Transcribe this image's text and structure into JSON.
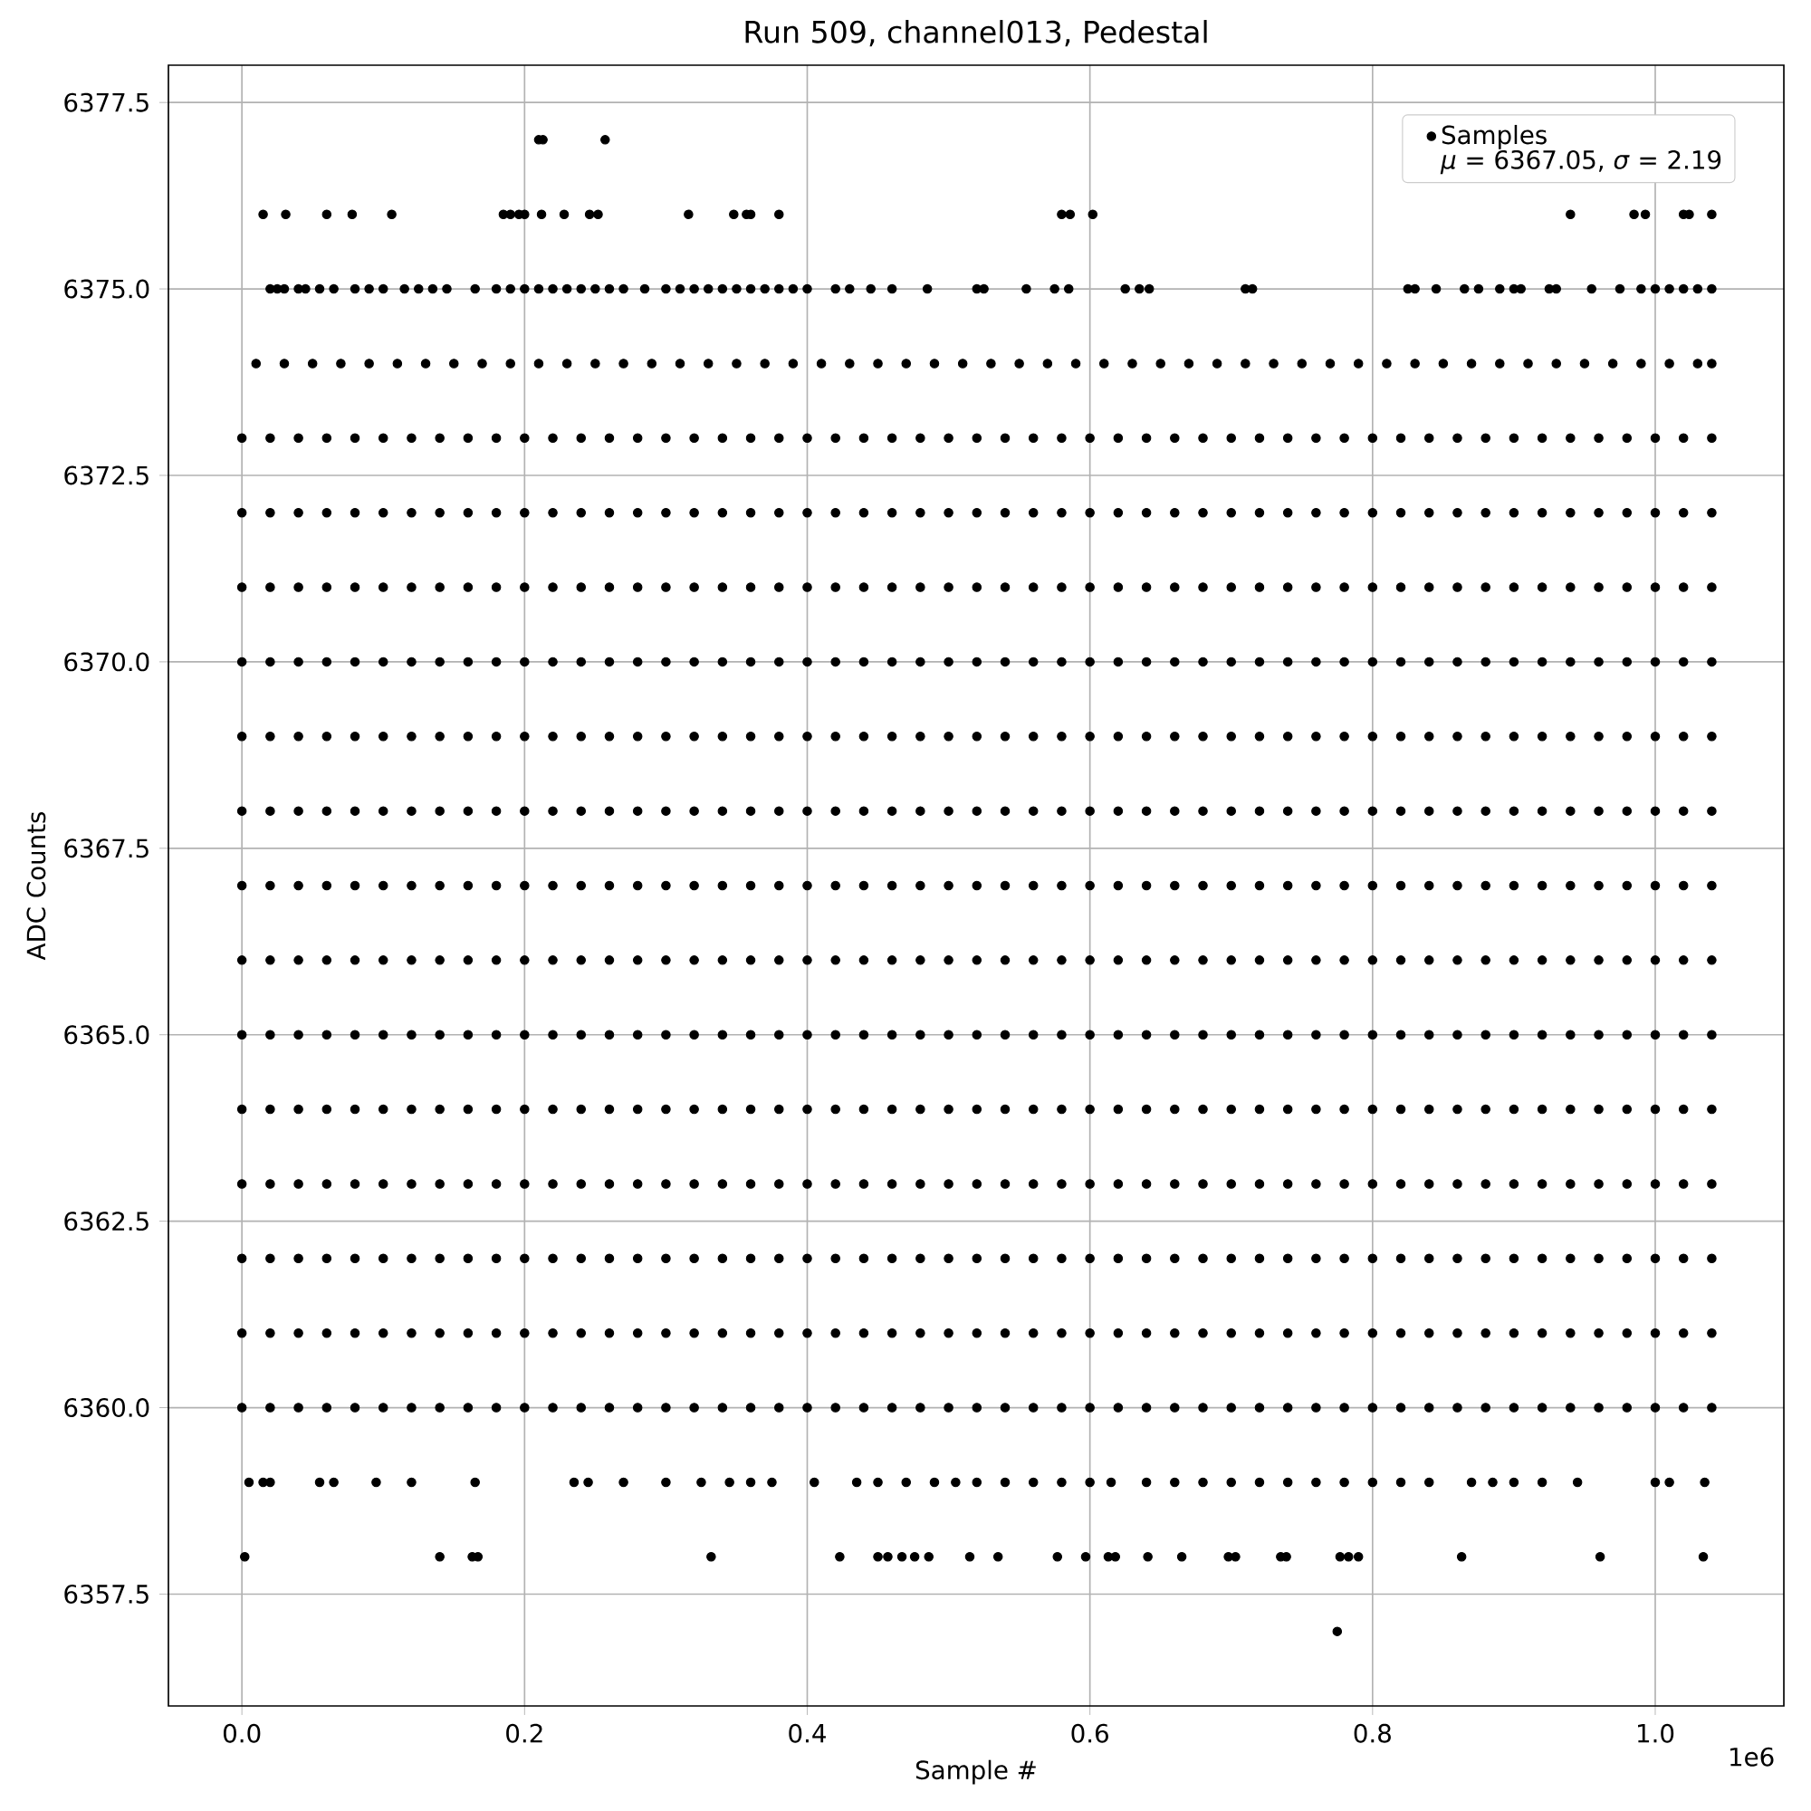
{
  "chart_data": {
    "type": "scatter",
    "title": "Run 509, channel013, Pedestal",
    "xlabel": "Sample #",
    "ylabel": "ADC Counts",
    "annotations": [
      "*μ* = 6367.05, *σ* = 2.19",
      "1e6"
    ],
    "xlim": [
      -0.052,
      1.091
    ],
    "ylim": [
      6356,
      6378
    ],
    "xticks": [
      {
        "value": 0,
        "label": "0.0"
      },
      0.2,
      0.4,
      0.6,
      0.8,
      {
        "value": 1,
        "label": "1.0"
      }
    ],
    "yticks": [
      6357.5,
      {
        "value": 6360,
        "label": "6360.0"
      },
      6362.5,
      {
        "value": 6365,
        "label": "6365.0"
      },
      6367.5,
      {
        "value": 6370,
        "label": "6370.0"
      },
      6372.5,
      {
        "value": 6375,
        "label": "6375.0"
      },
      6377.5
    ],
    "grid": true,
    "legend": "top right",
    "series": [
      {
        "name": "Samples",
        "color": "#000000",
        "x": [
          0.21,
          0.213,
          0.257
        ],
        "values": [
          6377,
          6377,
          6377
        ]
      },
      {
        "color": "#000000",
        "x": [
          0.015,
          0.031,
          0.06,
          0.078,
          0.106,
          0.185,
          0.19,
          0.196,
          0.2,
          0.212,
          0.228,
          0.246,
          0.252,
          0.316,
          0.348,
          0.357,
          0.36,
          0.38,
          0.58,
          0.586,
          0.602,
          0.94,
          0.985,
          0.993,
          1.02,
          1.024,
          1.04
        ],
        "values": [
          6376,
          6376,
          6376,
          6376,
          6376,
          6376,
          6376,
          6376,
          6376,
          6376,
          6376,
          6376,
          6376,
          6376,
          6376,
          6376,
          6376,
          6376,
          6376,
          6376,
          6376,
          6376,
          6376,
          6376,
          6376,
          6376,
          6376
        ]
      },
      {
        "color": "#000000",
        "x": [
          0.02,
          0.025,
          0.03,
          0.04,
          0.045,
          0.055,
          0.065,
          0.08,
          0.09,
          0.1,
          0.115,
          0.125,
          0.135,
          0.145,
          0.165,
          0.18,
          0.19,
          0.2,
          0.21,
          0.22,
          0.23,
          0.24,
          0.25,
          0.26,
          0.27,
          0.285,
          0.3,
          0.31,
          0.32,
          0.33,
          0.34,
          0.35,
          0.36,
          0.37,
          0.38,
          0.39,
          0.4,
          0.42,
          0.43,
          0.445,
          0.46,
          0.485,
          0.52,
          0.525,
          0.555,
          0.575,
          0.585,
          0.625,
          0.635,
          0.642,
          0.71,
          0.715,
          0.825,
          0.83,
          0.845,
          0.865,
          0.875,
          0.89,
          0.9,
          0.905,
          0.925,
          0.93,
          0.955,
          0.975,
          0.99,
          1.0,
          1.01,
          1.02,
          1.03,
          1.04
        ],
        "values": [
          6375,
          6375,
          6375,
          6375,
          6375,
          6375,
          6375,
          6375,
          6375,
          6375,
          6375,
          6375,
          6375,
          6375,
          6375,
          6375,
          6375,
          6375,
          6375,
          6375,
          6375,
          6375,
          6375,
          6375,
          6375,
          6375,
          6375,
          6375,
          6375,
          6375,
          6375,
          6375,
          6375,
          6375,
          6375,
          6375,
          6375,
          6375,
          6375,
          6375,
          6375,
          6375,
          6375,
          6375,
          6375,
          6375,
          6375,
          6375,
          6375,
          6375,
          6375,
          6375,
          6375,
          6375,
          6375,
          6375,
          6375,
          6375,
          6375,
          6375,
          6375,
          6375,
          6375,
          6375,
          6375,
          6375,
          6375,
          6375,
          6375,
          6375
        ]
      },
      {
        "color": "#000000",
        "x": [
          0.01,
          0.03,
          0.05,
          0.07,
          0.09,
          0.11,
          0.13,
          0.15,
          0.17,
          0.19,
          0.21,
          0.23,
          0.25,
          0.27,
          0.29,
          0.31,
          0.33,
          0.35,
          0.37,
          0.39,
          0.41,
          0.43,
          0.45,
          0.47,
          0.49,
          0.51,
          0.53,
          0.55,
          0.57,
          0.59,
          0.61,
          0.63,
          0.65,
          0.67,
          0.69,
          0.71,
          0.73,
          0.75,
          0.77,
          0.79,
          0.81,
          0.83,
          0.85,
          0.87,
          0.89,
          0.91,
          0.93,
          0.95,
          0.97,
          0.99,
          1.01,
          1.03,
          1.04
        ],
        "values": [
          6374,
          6374,
          6374,
          6374,
          6374,
          6374,
          6374,
          6374,
          6374,
          6374,
          6374,
          6374,
          6374,
          6374,
          6374,
          6374,
          6374,
          6374,
          6374,
          6374,
          6374,
          6374,
          6374,
          6374,
          6374,
          6374,
          6374,
          6374,
          6374,
          6374,
          6374,
          6374,
          6374,
          6374,
          6374,
          6374,
          6374,
          6374,
          6374,
          6374,
          6374,
          6374,
          6374,
          6374,
          6374,
          6374,
          6374,
          6374,
          6374,
          6374,
          6374,
          6374,
          6374
        ]
      },
      {
        "color": "#000000",
        "x": [
          0,
          0.02,
          0.04,
          0.06,
          0.08,
          0.1,
          0.12,
          0.14,
          0.16,
          0.18,
          0.2,
          0.22,
          0.24,
          0.26,
          0.28,
          0.3,
          0.32,
          0.34,
          0.36,
          0.38,
          0.4,
          0.42,
          0.44,
          0.46,
          0.48,
          0.5,
          0.52,
          0.54,
          0.56,
          0.58,
          0.6,
          0.62,
          0.64,
          0.66,
          0.68,
          0.7,
          0.72,
          0.74,
          0.76,
          0.78,
          0.8,
          0.82,
          0.84,
          0.86,
          0.88,
          0.9,
          0.92,
          0.94,
          0.96,
          0.98,
          1.0,
          1.02,
          1.04
        ],
        "values": [
          6373,
          6373,
          6373,
          6373,
          6373,
          6373,
          6373,
          6373,
          6373,
          6373,
          6373,
          6373,
          6373,
          6373,
          6373,
          6373,
          6373,
          6373,
          6373,
          6373,
          6373,
          6373,
          6373,
          6373,
          6373,
          6373,
          6373,
          6373,
          6373,
          6373,
          6373,
          6373,
          6373,
          6373,
          6373,
          6373,
          6373,
          6373,
          6373,
          6373,
          6373,
          6373,
          6373,
          6373,
          6373,
          6373,
          6373,
          6373,
          6373,
          6373,
          6373,
          6373,
          6373
        ]
      },
      {
        "color": "#000000",
        "x": [
          0,
          0.02,
          0.04,
          0.06,
          0.08,
          0.1,
          0.12,
          0.14,
          0.16,
          0.18,
          0.2,
          0.22,
          0.24,
          0.26,
          0.28,
          0.3,
          0.32,
          0.34,
          0.36,
          0.38,
          0.4,
          0.42,
          0.44,
          0.46,
          0.48,
          0.5,
          0.52,
          0.54,
          0.56,
          0.58,
          0.6,
          0.62,
          0.64,
          0.66,
          0.68,
          0.7,
          0.72,
          0.74,
          0.76,
          0.78,
          0.8,
          0.82,
          0.84,
          0.86,
          0.88,
          0.9,
          0.92,
          0.94,
          0.96,
          0.98,
          1.0,
          1.02,
          1.04
        ],
        "values": [
          6372,
          6372,
          6372,
          6372,
          6372,
          6372,
          6372,
          6372,
          6372,
          6372,
          6372,
          6372,
          6372,
          6372,
          6372,
          6372,
          6372,
          6372,
          6372,
          6372,
          6372,
          6372,
          6372,
          6372,
          6372,
          6372,
          6372,
          6372,
          6372,
          6372,
          6372,
          6372,
          6372,
          6372,
          6372,
          6372,
          6372,
          6372,
          6372,
          6372,
          6372,
          6372,
          6372,
          6372,
          6372,
          6372,
          6372,
          6372,
          6372,
          6372,
          6372,
          6372,
          6372
        ]
      },
      {
        "color": "#000000",
        "x": [
          0,
          0.02,
          0.04,
          0.06,
          0.08,
          0.1,
          0.12,
          0.14,
          0.16,
          0.18,
          0.2,
          0.22,
          0.24,
          0.26,
          0.28,
          0.3,
          0.32,
          0.34,
          0.36,
          0.38,
          0.4,
          0.42,
          0.44,
          0.46,
          0.48,
          0.5,
          0.52,
          0.54,
          0.56,
          0.58,
          0.6,
          0.62,
          0.64,
          0.66,
          0.68,
          0.7,
          0.72,
          0.74,
          0.76,
          0.78,
          0.8,
          0.82,
          0.84,
          0.86,
          0.88,
          0.9,
          0.92,
          0.94,
          0.96,
          0.98,
          1.0,
          1.02,
          1.04
        ],
        "values": [
          6371,
          6371,
          6371,
          6371,
          6371,
          6371,
          6371,
          6371,
          6371,
          6371,
          6371,
          6371,
          6371,
          6371,
          6371,
          6371,
          6371,
          6371,
          6371,
          6371,
          6371,
          6371,
          6371,
          6371,
          6371,
          6371,
          6371,
          6371,
          6371,
          6371,
          6371,
          6371,
          6371,
          6371,
          6371,
          6371,
          6371,
          6371,
          6371,
          6371,
          6371,
          6371,
          6371,
          6371,
          6371,
          6371,
          6371,
          6371,
          6371,
          6371,
          6371,
          6371,
          6371
        ]
      },
      {
        "color": "#000000",
        "x": [
          0,
          0.02,
          0.04,
          0.06,
          0.08,
          0.1,
          0.12,
          0.14,
          0.16,
          0.18,
          0.2,
          0.22,
          0.24,
          0.26,
          0.28,
          0.3,
          0.32,
          0.34,
          0.36,
          0.38,
          0.4,
          0.42,
          0.44,
          0.46,
          0.48,
          0.5,
          0.52,
          0.54,
          0.56,
          0.58,
          0.6,
          0.62,
          0.64,
          0.66,
          0.68,
          0.7,
          0.72,
          0.74,
          0.76,
          0.78,
          0.8,
          0.82,
          0.84,
          0.86,
          0.88,
          0.9,
          0.92,
          0.94,
          0.96,
          0.98,
          1.0,
          1.02,
          1.04
        ],
        "values": [
          6370,
          6370,
          6370,
          6370,
          6370,
          6370,
          6370,
          6370,
          6370,
          6370,
          6370,
          6370,
          6370,
          6370,
          6370,
          6370,
          6370,
          6370,
          6370,
          6370,
          6370,
          6370,
          6370,
          6370,
          6370,
          6370,
          6370,
          6370,
          6370,
          6370,
          6370,
          6370,
          6370,
          6370,
          6370,
          6370,
          6370,
          6370,
          6370,
          6370,
          6370,
          6370,
          6370,
          6370,
          6370,
          6370,
          6370,
          6370,
          6370,
          6370,
          6370,
          6370,
          6370
        ]
      },
      {
        "color": "#000000",
        "x": [
          0,
          0.02,
          0.04,
          0.06,
          0.08,
          0.1,
          0.12,
          0.14,
          0.16,
          0.18,
          0.2,
          0.22,
          0.24,
          0.26,
          0.28,
          0.3,
          0.32,
          0.34,
          0.36,
          0.38,
          0.4,
          0.42,
          0.44,
          0.46,
          0.48,
          0.5,
          0.52,
          0.54,
          0.56,
          0.58,
          0.6,
          0.62,
          0.64,
          0.66,
          0.68,
          0.7,
          0.72,
          0.74,
          0.76,
          0.78,
          0.8,
          0.82,
          0.84,
          0.86,
          0.88,
          0.9,
          0.92,
          0.94,
          0.96,
          0.98,
          1.0,
          1.02,
          1.04
        ],
        "values": [
          6369,
          6369,
          6369,
          6369,
          6369,
          6369,
          6369,
          6369,
          6369,
          6369,
          6369,
          6369,
          6369,
          6369,
          6369,
          6369,
          6369,
          6369,
          6369,
          6369,
          6369,
          6369,
          6369,
          6369,
          6369,
          6369,
          6369,
          6369,
          6369,
          6369,
          6369,
          6369,
          6369,
          6369,
          6369,
          6369,
          6369,
          6369,
          6369,
          6369,
          6369,
          6369,
          6369,
          6369,
          6369,
          6369,
          6369,
          6369,
          6369,
          6369,
          6369,
          6369,
          6369
        ]
      },
      {
        "color": "#000000",
        "x": [
          0,
          0.02,
          0.04,
          0.06,
          0.08,
          0.1,
          0.12,
          0.14,
          0.16,
          0.18,
          0.2,
          0.22,
          0.24,
          0.26,
          0.28,
          0.3,
          0.32,
          0.34,
          0.36,
          0.38,
          0.4,
          0.42,
          0.44,
          0.46,
          0.48,
          0.5,
          0.52,
          0.54,
          0.56,
          0.58,
          0.6,
          0.62,
          0.64,
          0.66,
          0.68,
          0.7,
          0.72,
          0.74,
          0.76,
          0.78,
          0.8,
          0.82,
          0.84,
          0.86,
          0.88,
          0.9,
          0.92,
          0.94,
          0.96,
          0.98,
          1.0,
          1.02,
          1.04
        ],
        "values": [
          6368,
          6368,
          6368,
          6368,
          6368,
          6368,
          6368,
          6368,
          6368,
          6368,
          6368,
          6368,
          6368,
          6368,
          6368,
          6368,
          6368,
          6368,
          6368,
          6368,
          6368,
          6368,
          6368,
          6368,
          6368,
          6368,
          6368,
          6368,
          6368,
          6368,
          6368,
          6368,
          6368,
          6368,
          6368,
          6368,
          6368,
          6368,
          6368,
          6368,
          6368,
          6368,
          6368,
          6368,
          6368,
          6368,
          6368,
          6368,
          6368,
          6368,
          6368,
          6368,
          6368
        ]
      },
      {
        "color": "#000000",
        "x": [
          0,
          0.02,
          0.04,
          0.06,
          0.08,
          0.1,
          0.12,
          0.14,
          0.16,
          0.18,
          0.2,
          0.22,
          0.24,
          0.26,
          0.28,
          0.3,
          0.32,
          0.34,
          0.36,
          0.38,
          0.4,
          0.42,
          0.44,
          0.46,
          0.48,
          0.5,
          0.52,
          0.54,
          0.56,
          0.58,
          0.6,
          0.62,
          0.64,
          0.66,
          0.68,
          0.7,
          0.72,
          0.74,
          0.76,
          0.78,
          0.8,
          0.82,
          0.84,
          0.86,
          0.88,
          0.9,
          0.92,
          0.94,
          0.96,
          0.98,
          1.0,
          1.02,
          1.04
        ],
        "values": [
          6367,
          6367,
          6367,
          6367,
          6367,
          6367,
          6367,
          6367,
          6367,
          6367,
          6367,
          6367,
          6367,
          6367,
          6367,
          6367,
          6367,
          6367,
          6367,
          6367,
          6367,
          6367,
          6367,
          6367,
          6367,
          6367,
          6367,
          6367,
          6367,
          6367,
          6367,
          6367,
          6367,
          6367,
          6367,
          6367,
          6367,
          6367,
          6367,
          6367,
          6367,
          6367,
          6367,
          6367,
          6367,
          6367,
          6367,
          6367,
          6367,
          6367,
          6367,
          6367,
          6367
        ]
      },
      {
        "color": "#000000",
        "x": [
          0,
          0.02,
          0.04,
          0.06,
          0.08,
          0.1,
          0.12,
          0.14,
          0.16,
          0.18,
          0.2,
          0.22,
          0.24,
          0.26,
          0.28,
          0.3,
          0.32,
          0.34,
          0.36,
          0.38,
          0.4,
          0.42,
          0.44,
          0.46,
          0.48,
          0.5,
          0.52,
          0.54,
          0.56,
          0.58,
          0.6,
          0.62,
          0.64,
          0.66,
          0.68,
          0.7,
          0.72,
          0.74,
          0.76,
          0.78,
          0.8,
          0.82,
          0.84,
          0.86,
          0.88,
          0.9,
          0.92,
          0.94,
          0.96,
          0.98,
          1.0,
          1.02,
          1.04
        ],
        "values": [
          6366,
          6366,
          6366,
          6366,
          6366,
          6366,
          6366,
          6366,
          6366,
          6366,
          6366,
          6366,
          6366,
          6366,
          6366,
          6366,
          6366,
          6366,
          6366,
          6366,
          6366,
          6366,
          6366,
          6366,
          6366,
          6366,
          6366,
          6366,
          6366,
          6366,
          6366,
          6366,
          6366,
          6366,
          6366,
          6366,
          6366,
          6366,
          6366,
          6366,
          6366,
          6366,
          6366,
          6366,
          6366,
          6366,
          6366,
          6366,
          6366,
          6366,
          6366,
          6366,
          6366
        ]
      },
      {
        "color": "#000000",
        "x": [
          0,
          0.02,
          0.04,
          0.06,
          0.08,
          0.1,
          0.12,
          0.14,
          0.16,
          0.18,
          0.2,
          0.22,
          0.24,
          0.26,
          0.28,
          0.3,
          0.32,
          0.34,
          0.36,
          0.38,
          0.4,
          0.42,
          0.44,
          0.46,
          0.48,
          0.5,
          0.52,
          0.54,
          0.56,
          0.58,
          0.6,
          0.62,
          0.64,
          0.66,
          0.68,
          0.7,
          0.72,
          0.74,
          0.76,
          0.78,
          0.8,
          0.82,
          0.84,
          0.86,
          0.88,
          0.9,
          0.92,
          0.94,
          0.96,
          0.98,
          1.0,
          1.02,
          1.04
        ],
        "values": [
          6365,
          6365,
          6365,
          6365,
          6365,
          6365,
          6365,
          6365,
          6365,
          6365,
          6365,
          6365,
          6365,
          6365,
          6365,
          6365,
          6365,
          6365,
          6365,
          6365,
          6365,
          6365,
          6365,
          6365,
          6365,
          6365,
          6365,
          6365,
          6365,
          6365,
          6365,
          6365,
          6365,
          6365,
          6365,
          6365,
          6365,
          6365,
          6365,
          6365,
          6365,
          6365,
          6365,
          6365,
          6365,
          6365,
          6365,
          6365,
          6365,
          6365,
          6365,
          6365,
          6365
        ]
      },
      {
        "color": "#000000",
        "x": [
          0,
          0.02,
          0.04,
          0.06,
          0.08,
          0.1,
          0.12,
          0.14,
          0.16,
          0.18,
          0.2,
          0.22,
          0.24,
          0.26,
          0.28,
          0.3,
          0.32,
          0.34,
          0.36,
          0.38,
          0.4,
          0.42,
          0.44,
          0.46,
          0.48,
          0.5,
          0.52,
          0.54,
          0.56,
          0.58,
          0.6,
          0.62,
          0.64,
          0.66,
          0.68,
          0.7,
          0.72,
          0.74,
          0.76,
          0.78,
          0.8,
          0.82,
          0.84,
          0.86,
          0.88,
          0.9,
          0.92,
          0.94,
          0.96,
          0.98,
          1.0,
          1.02,
          1.04
        ],
        "values": [
          6364,
          6364,
          6364,
          6364,
          6364,
          6364,
          6364,
          6364,
          6364,
          6364,
          6364,
          6364,
          6364,
          6364,
          6364,
          6364,
          6364,
          6364,
          6364,
          6364,
          6364,
          6364,
          6364,
          6364,
          6364,
          6364,
          6364,
          6364,
          6364,
          6364,
          6364,
          6364,
          6364,
          6364,
          6364,
          6364,
          6364,
          6364,
          6364,
          6364,
          6364,
          6364,
          6364,
          6364,
          6364,
          6364,
          6364,
          6364,
          6364,
          6364,
          6364,
          6364,
          6364
        ]
      },
      {
        "color": "#000000",
        "x": [
          0,
          0.02,
          0.04,
          0.06,
          0.08,
          0.1,
          0.12,
          0.14,
          0.16,
          0.18,
          0.2,
          0.22,
          0.24,
          0.26,
          0.28,
          0.3,
          0.32,
          0.34,
          0.36,
          0.38,
          0.4,
          0.42,
          0.44,
          0.46,
          0.48,
          0.5,
          0.52,
          0.54,
          0.56,
          0.58,
          0.6,
          0.62,
          0.64,
          0.66,
          0.68,
          0.7,
          0.72,
          0.74,
          0.76,
          0.78,
          0.8,
          0.82,
          0.84,
          0.86,
          0.88,
          0.9,
          0.92,
          0.94,
          0.96,
          0.98,
          1.0,
          1.02,
          1.04
        ],
        "values": [
          6363,
          6363,
          6363,
          6363,
          6363,
          6363,
          6363,
          6363,
          6363,
          6363,
          6363,
          6363,
          6363,
          6363,
          6363,
          6363,
          6363,
          6363,
          6363,
          6363,
          6363,
          6363,
          6363,
          6363,
          6363,
          6363,
          6363,
          6363,
          6363,
          6363,
          6363,
          6363,
          6363,
          6363,
          6363,
          6363,
          6363,
          6363,
          6363,
          6363,
          6363,
          6363,
          6363,
          6363,
          6363,
          6363,
          6363,
          6363,
          6363,
          6363,
          6363,
          6363,
          6363
        ]
      },
      {
        "color": "#000000",
        "x": [
          0,
          0.02,
          0.04,
          0.06,
          0.08,
          0.1,
          0.12,
          0.14,
          0.16,
          0.18,
          0.2,
          0.22,
          0.24,
          0.26,
          0.28,
          0.3,
          0.32,
          0.34,
          0.36,
          0.38,
          0.4,
          0.42,
          0.44,
          0.46,
          0.48,
          0.5,
          0.52,
          0.54,
          0.56,
          0.58,
          0.6,
          0.62,
          0.64,
          0.66,
          0.68,
          0.7,
          0.72,
          0.74,
          0.76,
          0.78,
          0.8,
          0.82,
          0.84,
          0.86,
          0.88,
          0.9,
          0.92,
          0.94,
          0.96,
          0.98,
          1.0,
          1.02,
          1.04
        ],
        "values": [
          6362,
          6362,
          6362,
          6362,
          6362,
          6362,
          6362,
          6362,
          6362,
          6362,
          6362,
          6362,
          6362,
          6362,
          6362,
          6362,
          6362,
          6362,
          6362,
          6362,
          6362,
          6362,
          6362,
          6362,
          6362,
          6362,
          6362,
          6362,
          6362,
          6362,
          6362,
          6362,
          6362,
          6362,
          6362,
          6362,
          6362,
          6362,
          6362,
          6362,
          6362,
          6362,
          6362,
          6362,
          6362,
          6362,
          6362,
          6362,
          6362,
          6362,
          6362,
          6362,
          6362
        ]
      },
      {
        "color": "#000000",
        "x": [
          0,
          0.02,
          0.04,
          0.06,
          0.08,
          0.1,
          0.12,
          0.14,
          0.16,
          0.18,
          0.2,
          0.22,
          0.24,
          0.26,
          0.28,
          0.3,
          0.32,
          0.34,
          0.36,
          0.38,
          0.4,
          0.42,
          0.44,
          0.46,
          0.48,
          0.5,
          0.52,
          0.54,
          0.56,
          0.58,
          0.6,
          0.62,
          0.64,
          0.66,
          0.68,
          0.7,
          0.72,
          0.74,
          0.76,
          0.78,
          0.8,
          0.82,
          0.84,
          0.86,
          0.88,
          0.9,
          0.92,
          0.94,
          0.96,
          0.98,
          1.0,
          1.02,
          1.04
        ],
        "values": [
          6361,
          6361,
          6361,
          6361,
          6361,
          6361,
          6361,
          6361,
          6361,
          6361,
          6361,
          6361,
          6361,
          6361,
          6361,
          6361,
          6361,
          6361,
          6361,
          6361,
          6361,
          6361,
          6361,
          6361,
          6361,
          6361,
          6361,
          6361,
          6361,
          6361,
          6361,
          6361,
          6361,
          6361,
          6361,
          6361,
          6361,
          6361,
          6361,
          6361,
          6361,
          6361,
          6361,
          6361,
          6361,
          6361,
          6361,
          6361,
          6361,
          6361,
          6361,
          6361,
          6361
        ]
      },
      {
        "color": "#000000",
        "x": [
          0,
          0.02,
          0.04,
          0.06,
          0.08,
          0.1,
          0.12,
          0.14,
          0.16,
          0.18,
          0.2,
          0.22,
          0.24,
          0.26,
          0.28,
          0.3,
          0.32,
          0.34,
          0.36,
          0.38,
          0.4,
          0.42,
          0.44,
          0.46,
          0.48,
          0.5,
          0.52,
          0.54,
          0.56,
          0.58,
          0.6,
          0.62,
          0.64,
          0.66,
          0.68,
          0.7,
          0.72,
          0.74,
          0.76,
          0.78,
          0.8,
          0.82,
          0.84,
          0.86,
          0.88,
          0.9,
          0.92,
          0.94,
          0.96,
          0.98,
          1.0,
          1.02,
          1.04
        ],
        "values": [
          6360,
          6360,
          6360,
          6360,
          6360,
          6360,
          6360,
          6360,
          6360,
          6360,
          6360,
          6360,
          6360,
          6360,
          6360,
          6360,
          6360,
          6360,
          6360,
          6360,
          6360,
          6360,
          6360,
          6360,
          6360,
          6360,
          6360,
          6360,
          6360,
          6360,
          6360,
          6360,
          6360,
          6360,
          6360,
          6360,
          6360,
          6360,
          6360,
          6360,
          6360,
          6360,
          6360,
          6360,
          6360,
          6360,
          6360,
          6360,
          6360,
          6360,
          6360,
          6360,
          6360
        ]
      },
      {
        "color": "#000000",
        "x": [
          0.005,
          0.015,
          0.02,
          0.055,
          0.065,
          0.095,
          0.12,
          0.165,
          0.235,
          0.245,
          0.27,
          0.3,
          0.325,
          0.345,
          0.36,
          0.375,
          0.405,
          0.435,
          0.45,
          0.47,
          0.49,
          0.505,
          0.52,
          0.54,
          0.56,
          0.58,
          0.6,
          0.615,
          0.64,
          0.66,
          0.68,
          0.7,
          0.72,
          0.74,
          0.76,
          0.78,
          0.8,
          0.82,
          0.84,
          0.87,
          0.885,
          0.9,
          0.92,
          0.945,
          1.0,
          1.01,
          1.035
        ],
        "values": [
          6359,
          6359,
          6359,
          6359,
          6359,
          6359,
          6359,
          6359,
          6359,
          6359,
          6359,
          6359,
          6359,
          6359,
          6359,
          6359,
          6359,
          6359,
          6359,
          6359,
          6359,
          6359,
          6359,
          6359,
          6359,
          6359,
          6359,
          6359,
          6359,
          6359,
          6359,
          6359,
          6359,
          6359,
          6359,
          6359,
          6359,
          6359,
          6359,
          6359,
          6359,
          6359,
          6359,
          6359,
          6359,
          6359,
          6359
        ]
      },
      {
        "color": "#000000",
        "x": [
          0.002,
          0.14,
          0.163,
          0.167,
          0.332,
          0.423,
          0.45,
          0.457,
          0.467,
          0.476,
          0.486,
          0.515,
          0.535,
          0.577,
          0.597,
          0.613,
          0.618,
          0.641,
          0.665,
          0.698,
          0.703,
          0.735,
          0.739,
          0.777,
          0.783,
          0.79,
          0.863,
          0.961,
          1.034
        ],
        "values": [
          6358,
          6358,
          6358,
          6358,
          6358,
          6358,
          6358,
          6358,
          6358,
          6358,
          6358,
          6358,
          6358,
          6358,
          6358,
          6358,
          6358,
          6358,
          6358,
          6358,
          6358,
          6358,
          6358,
          6358,
          6358,
          6358,
          6358,
          6358,
          6358
        ]
      },
      {
        "color": "#000000",
        "x": [
          0.775
        ],
        "values": [
          6357
        ]
      }
    ]
  }
}
